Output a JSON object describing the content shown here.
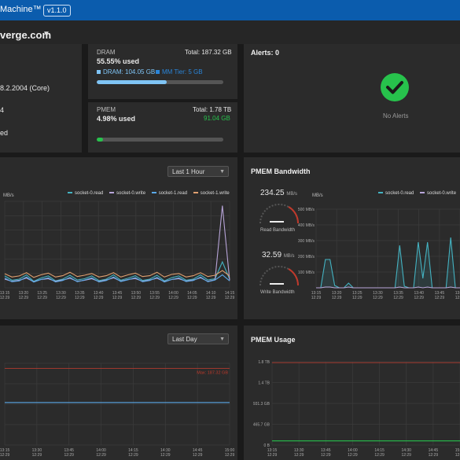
{
  "app": {
    "title": "Machine™",
    "version": "v1.1.0"
  },
  "host": {
    "name": "verge.com"
  },
  "system_panel": {
    "os_version": "8.2.2004 (Core)",
    "line2": "4",
    "line3": "ed"
  },
  "dram": {
    "label": "DRAM",
    "total": "Total: 187.32 GB",
    "used": "55.55% used",
    "dram_legend": "DRAM: 104.05 GB",
    "mm_legend": "MM Tier: 5 GB",
    "used_fraction": 0.5555,
    "colors": {
      "dram": "#7fc4f5",
      "mm": "#2a85d9"
    }
  },
  "pmem": {
    "label": "PMEM",
    "total": "Total: 1.78 TB",
    "used": "4.98% used",
    "used_amount": "91.04 GB",
    "used_fraction": 0.0498,
    "color": "#27c24c"
  },
  "alerts": {
    "title": "Alerts: 0",
    "empty_text": "No Alerts",
    "icon": "check-circle-icon",
    "color": "#27c24c"
  },
  "dram_bandwidth": {
    "range_label": "Last 1 Hour",
    "unit": "MB/s",
    "legend": [
      "socket-0.read",
      "socket-0.write",
      "socket-1.read",
      "socket-1.write"
    ],
    "colors": [
      "#44b3c2",
      "#b8a5d9",
      "#5aa8e8",
      "#e0a070"
    ],
    "x_ticks": [
      "13:15\n12:29",
      "13:20\n12:29",
      "13:25\n12:29",
      "13:30\n12:29",
      "13:35\n12:29",
      "13:40\n12:29",
      "13:45\n12:29",
      "13:50\n12:29",
      "13:55\n12:29",
      "14:00\n12:29",
      "14:05\n12:29",
      "14:10\n12:29",
      "14:15\n12:29"
    ]
  },
  "pmem_bandwidth": {
    "title": "PMEM Bandwidth",
    "read_value": "234.25",
    "read_unit": "MB/s",
    "read_label": "Read Bandwidth",
    "write_value": "32.59",
    "write_unit": "MB/s",
    "write_label": "Write Bandwidth",
    "unit": "MB/s",
    "legend": [
      "socket-0.read",
      "socket-0.write"
    ],
    "colors": [
      "#44b3c2",
      "#b8a5d9"
    ],
    "y_ticks": [
      "500 MB/s",
      "400 MB/s",
      "300 MB/s",
      "200 MB/s",
      "100 MB/s"
    ],
    "x_ticks": [
      "13:15\n12:29",
      "13:20\n12:29",
      "13:25\n12:29",
      "13:30\n12:29",
      "13:35\n12:29",
      "13:40\n12:29",
      "13:45\n12:29",
      "13:50\n12:29"
    ]
  },
  "dram_usage": {
    "range_label": "Last Day",
    "max_label": "Max: 187.32 GB",
    "x_ticks": [
      "13:15\n12:29",
      "13:30\n12:29",
      "13:45\n12:29",
      "14:00\n12:29",
      "14:15\n12:29",
      "14:30\n12:29",
      "14:45\n12:29",
      "15:00\n12:29"
    ]
  },
  "pmem_usage": {
    "title": "PMEM Usage",
    "y_ticks": [
      "1.8 TB",
      "1.4 TB",
      "931.3 GB",
      "465.7 GB",
      "0 B"
    ],
    "x_ticks": [
      "13:15\n12:29",
      "13:30\n12:29",
      "13:45\n12:29",
      "14:00\n12:29",
      "14:15\n12:29",
      "14:30\n12:29",
      "14:45\n12:29",
      "15:00\n12:29"
    ]
  },
  "chart_data": [
    {
      "type": "line",
      "title": "",
      "ylabel": "MB/s",
      "series": [
        {
          "name": "socket-0.read",
          "values": [
            55,
            35,
            40,
            60,
            30,
            45,
            55,
            32,
            40,
            58,
            36,
            42,
            55,
            33,
            40,
            60,
            35,
            44,
            56,
            34,
            40,
            58,
            32,
            46,
            55,
            35,
            40,
            60,
            36,
            42,
            120,
            40
          ]
        },
        {
          "name": "socket-0.write",
          "values": [
            40,
            30,
            35,
            45,
            28,
            38,
            42,
            30,
            36,
            44,
            30,
            35,
            42,
            29,
            36,
            46,
            31,
            38,
            43,
            30,
            36,
            44,
            29,
            38,
            42,
            31,
            36,
            46,
            30,
            37,
            380,
            35
          ]
        },
        {
          "name": "socket-1.read",
          "values": [
            45,
            28,
            32,
            50,
            26,
            38,
            46,
            27,
            34,
            48,
            28,
            36,
            46,
            27,
            34,
            50,
            29,
            37,
            47,
            28,
            34,
            48,
            27,
            38,
            46,
            29,
            34,
            50,
            28,
            36,
            60,
            32
          ]
        },
        {
          "name": "socket-1.write",
          "values": [
            65,
            50,
            55,
            70,
            48,
            60,
            68,
            50,
            56,
            72,
            52,
            58,
            66,
            50,
            56,
            70,
            50,
            60,
            68,
            52,
            56,
            72,
            50,
            62,
            66,
            50,
            56,
            70,
            52,
            58,
            80,
            55
          ]
        }
      ]
    },
    {
      "type": "line",
      "title": "PMEM Bandwidth",
      "ylabel": "MB/s",
      "ylim": [
        0,
        500
      ],
      "series": [
        {
          "name": "socket-0.read",
          "values": [
            0,
            0,
            180,
            180,
            15,
            0,
            0,
            30,
            0,
            0,
            0,
            0,
            0,
            0,
            0,
            0,
            0,
            0,
            270,
            10,
            0,
            0,
            290,
            60,
            290,
            0,
            0,
            0,
            0,
            320,
            0,
            0
          ]
        },
        {
          "name": "socket-0.write",
          "values": [
            0,
            0,
            5,
            5,
            0,
            0,
            0,
            5,
            0,
            0,
            0,
            0,
            0,
            0,
            0,
            0,
            0,
            0,
            5,
            0,
            0,
            0,
            5,
            0,
            5,
            0,
            0,
            0,
            0,
            5,
            0,
            0
          ]
        }
      ]
    },
    {
      "type": "line",
      "title": "",
      "series": [
        {
          "name": "",
          "values": [
            104,
            104,
            104,
            104,
            104,
            104,
            104,
            104
          ]
        }
      ],
      "max_line": 187.32
    },
    {
      "type": "line",
      "title": "PMEM Usage",
      "series": [
        {
          "name": "",
          "values": [
            0.09,
            0.09,
            0.09,
            0.09,
            0.09,
            0.09,
            0.09,
            0.09
          ]
        }
      ],
      "max_line": 1.78
    }
  ]
}
